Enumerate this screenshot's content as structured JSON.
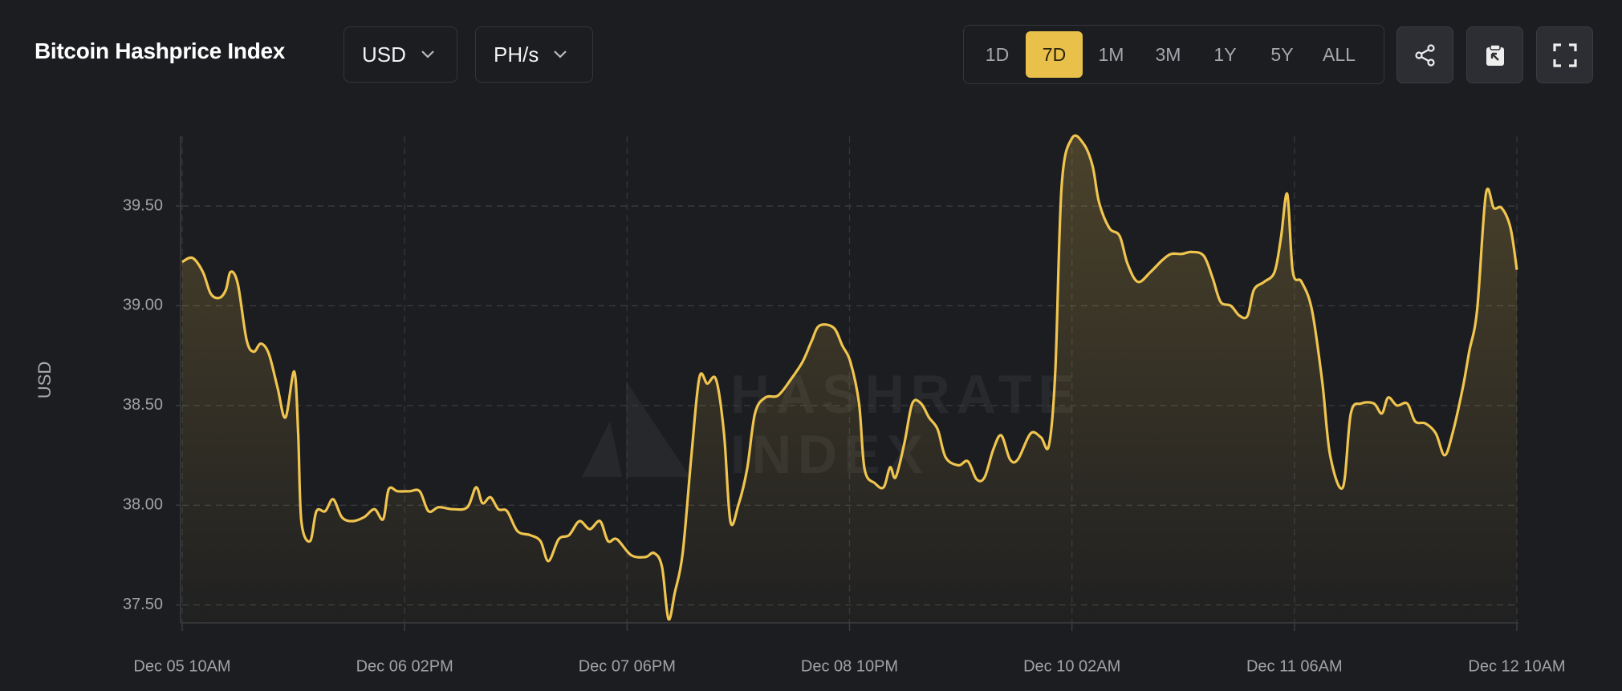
{
  "header": {
    "title": "Bitcoin Hashprice Index",
    "currency": "USD",
    "unit": "PH/s",
    "ranges": [
      "1D",
      "7D",
      "1M",
      "3M",
      "1Y",
      "5Y",
      "ALL"
    ],
    "active_range": "7D"
  },
  "watermark": [
    "HASHRATE",
    "INDEX"
  ],
  "chart_data": {
    "type": "line",
    "y_label": "USD",
    "color": "#f0c54f",
    "grid": true,
    "xlim": [
      0,
      168
    ],
    "xticks": [
      {
        "value": 0,
        "label": "Dec 05 10AM"
      },
      {
        "value": 28,
        "label": "Dec 06 02PM"
      },
      {
        "value": 56,
        "label": "Dec 07 06PM"
      },
      {
        "value": 84,
        "label": "Dec 08 10PM"
      },
      {
        "value": 112,
        "label": "Dec 10 02AM"
      },
      {
        "value": 140,
        "label": "Dec 11 06AM"
      },
      {
        "value": 168,
        "label": "Dec 12 10AM"
      }
    ],
    "ylim": [
      37.41,
      39.85
    ],
    "yticks": [
      {
        "value": 37.5,
        "label": "37.50"
      },
      {
        "value": 38,
        "label": "38.00"
      },
      {
        "value": 38.5,
        "label": "38.50"
      },
      {
        "value": 39,
        "label": "39.00"
      },
      {
        "value": 39.5,
        "label": "39.50"
      }
    ],
    "x": [
      0,
      1.3,
      2.6,
      3.6,
      4.7,
      5.5,
      6.1,
      7.0,
      8.1,
      9.0,
      9.9,
      10.9,
      12.0,
      13.0,
      14.1,
      14.6,
      15.0,
      16.1,
      16.9,
      18.0,
      19.0,
      20.1,
      21.4,
      22.9,
      24.2,
      25.3,
      26.0,
      27.1,
      28.6,
      29.9,
      31.0,
      32.3,
      34.1,
      35.9,
      37.0,
      37.8,
      38.8,
      39.8,
      40.9,
      42.2,
      43.8,
      45.1,
      46.1,
      47.4,
      48.7,
      50.0,
      51.3,
      52.6,
      53.6,
      54.7,
      56.5,
      58.3,
      59.4,
      60.4,
      61.2,
      62.0,
      63.0,
      64.1,
      65.1,
      66.1,
      67.2,
      68.2,
      69.0,
      70.0,
      71.1,
      72.1,
      73.4,
      75.0,
      76.6,
      78.1,
      79.2,
      80.2,
      82.0,
      83.1,
      84.1,
      85.2,
      85.9,
      87.2,
      88.3,
      89.1,
      89.8,
      90.9,
      91.9,
      93.0,
      94.0,
      95.1,
      96.1,
      97.7,
      98.9,
      100.0,
      101.0,
      102.1,
      103.1,
      104.2,
      105.2,
      106.8,
      108.1,
      109.1,
      109.9,
      110.7,
      112.0,
      113.5,
      114.6,
      115.4,
      116.7,
      118.0,
      119.0,
      120.3,
      121.9,
      123.4,
      124.5,
      125.8,
      127.1,
      128.6,
      129.7,
      130.7,
      132.0,
      133.1,
      134.1,
      134.9,
      136.2,
      137.5,
      138.3,
      139.1,
      139.8,
      140.9,
      142.2,
      143.5,
      144.5,
      146.1,
      147.1,
      148.4,
      150.0,
      151.0,
      151.8,
      152.9,
      154.2,
      155.2,
      156.5,
      157.8,
      158.9,
      159.9,
      161.2,
      162.0,
      163.0,
      164.1,
      165.1,
      166.1,
      167.2,
      168.0
    ],
    "values": [
      39.22,
      39.24,
      39.17,
      39.06,
      39.04,
      39.08,
      39.17,
      39.11,
      38.83,
      38.77,
      38.81,
      38.76,
      38.59,
      38.44,
      38.67,
      38.36,
      37.92,
      37.82,
      37.97,
      37.97,
      38.03,
      37.94,
      37.92,
      37.94,
      37.98,
      37.93,
      38.08,
      38.07,
      38.07,
      38.07,
      37.97,
      37.99,
      37.98,
      37.99,
      38.09,
      38.01,
      38.04,
      37.98,
      37.97,
      37.87,
      37.85,
      37.82,
      37.72,
      37.83,
      37.85,
      37.92,
      37.88,
      37.92,
      37.82,
      37.83,
      37.75,
      37.74,
      37.76,
      37.69,
      37.43,
      37.56,
      37.76,
      38.25,
      38.64,
      38.61,
      38.63,
      38.36,
      37.92,
      38.0,
      38.18,
      38.46,
      38.54,
      38.55,
      38.63,
      38.72,
      38.82,
      38.9,
      38.89,
      38.8,
      38.72,
      38.51,
      38.18,
      38.11,
      38.09,
      38.19,
      38.14,
      38.31,
      38.51,
      38.51,
      38.44,
      38.38,
      38.24,
      38.2,
      38.22,
      38.13,
      38.14,
      38.28,
      38.35,
      38.23,
      38.23,
      38.36,
      38.34,
      38.3,
      38.67,
      39.6,
      39.84,
      39.81,
      39.7,
      39.52,
      39.39,
      39.35,
      39.21,
      39.12,
      39.17,
      39.23,
      39.26,
      39.26,
      39.27,
      39.25,
      39.14,
      39.02,
      39.0,
      38.95,
      38.95,
      39.08,
      39.12,
      39.17,
      39.34,
      39.56,
      39.17,
      39.12,
      38.98,
      38.62,
      38.25,
      38.09,
      38.46,
      38.51,
      38.51,
      38.46,
      38.54,
      38.5,
      38.51,
      38.42,
      38.41,
      38.36,
      38.25,
      38.36,
      38.59,
      38.77,
      38.98,
      39.56,
      39.49,
      39.49,
      39.39,
      39.18
    ]
  }
}
